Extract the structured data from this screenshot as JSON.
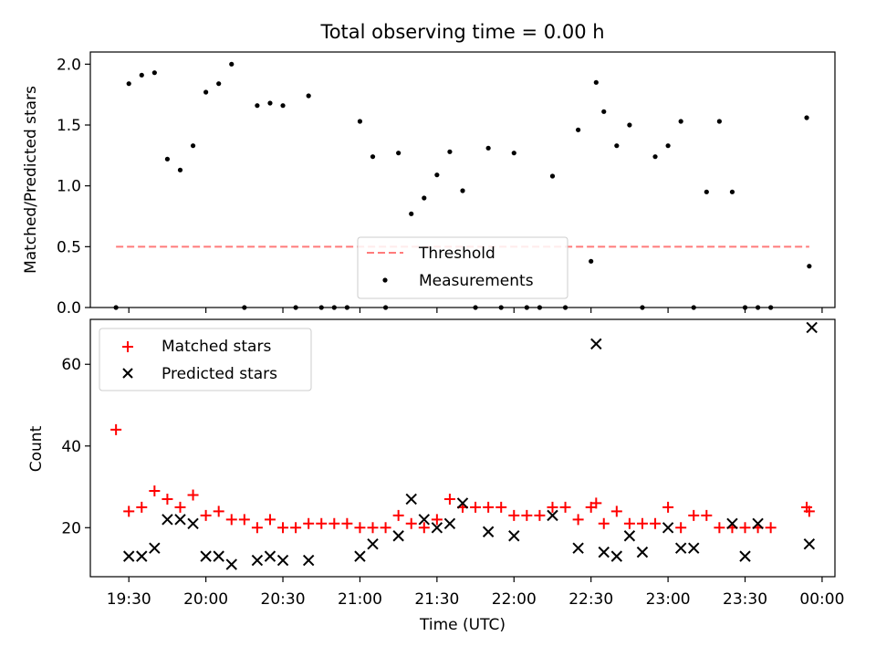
{
  "chart_data": [
    {
      "type": "scatter",
      "title": "Total observing time = 0.00 h",
      "xlabel": "",
      "ylabel": "Matched/Predicted stars",
      "xlim": [
        "19:15",
        "00:05"
      ],
      "ylim": [
        0,
        2.1
      ],
      "yticks": [
        0.0,
        0.5,
        1.0,
        1.5,
        2.0
      ],
      "ytick_labels": [
        "0.0",
        "0.5",
        "1.0",
        "1.5",
        "2.0"
      ],
      "threshold": {
        "name": "Threshold",
        "value": 0.5,
        "x_range": [
          "19:25",
          "23:55"
        ],
        "color": "#ff7b7b",
        "style": "dashed"
      },
      "series": [
        {
          "name": "Measurements",
          "color": "#000000",
          "marker": "dot",
          "x": [
            "19:25",
            "19:30",
            "19:35",
            "19:40",
            "19:45",
            "19:50",
            "19:55",
            "20:00",
            "20:05",
            "20:10",
            "20:15",
            "20:20",
            "20:25",
            "20:30",
            "20:35",
            "20:40",
            "20:45",
            "20:50",
            "20:55",
            "21:00",
            "21:05",
            "21:10",
            "21:15",
            "21:20",
            "21:25",
            "21:30",
            "21:35",
            "21:40",
            "21:45",
            "21:50",
            "21:55",
            "22:00",
            "22:05",
            "22:10",
            "22:15",
            "22:20",
            "22:25",
            "22:30",
            "22:32",
            "22:35",
            "22:40",
            "22:45",
            "22:50",
            "22:55",
            "23:00",
            "23:05",
            "23:10",
            "23:15",
            "23:20",
            "23:25",
            "23:30",
            "23:35",
            "23:40",
            "23:54",
            "23:55"
          ],
          "y": [
            0.0,
            1.84,
            1.91,
            1.93,
            1.22,
            1.13,
            1.33,
            1.77,
            1.84,
            2.0,
            0.0,
            1.66,
            1.68,
            1.66,
            0.0,
            1.74,
            0.0,
            0.0,
            0.0,
            1.53,
            1.24,
            0.0,
            1.27,
            0.77,
            0.9,
            1.09,
            1.28,
            0.96,
            0.0,
            1.31,
            0.0,
            1.27,
            0.0,
            0.0,
            1.08,
            0.0,
            1.46,
            0.38,
            1.85,
            1.61,
            1.33,
            1.5,
            0.0,
            1.24,
            1.33,
            1.53,
            0.0,
            0.95,
            1.53,
            0.95,
            0.0,
            0.0,
            0.0,
            1.56,
            0.34
          ]
        }
      ],
      "legend": {
        "position": "lower-center",
        "entries": [
          "Threshold",
          "Measurements"
        ]
      },
      "grid": false
    },
    {
      "type": "scatter",
      "title": "",
      "xlabel": "Time (UTC)",
      "ylabel": "Count",
      "xlim": [
        "19:15",
        "00:05"
      ],
      "ylim": [
        8,
        71
      ],
      "yticks": [
        20,
        40,
        60
      ],
      "ytick_labels": [
        "20",
        "40",
        "60"
      ],
      "xticks": [
        "19:30",
        "20:00",
        "20:30",
        "21:00",
        "21:30",
        "22:00",
        "22:30",
        "23:00",
        "23:30",
        "00:00"
      ],
      "series": [
        {
          "name": "Matched stars",
          "color": "#ff0000",
          "marker": "plus",
          "x": [
            "19:25",
            "19:30",
            "19:35",
            "19:40",
            "19:45",
            "19:50",
            "19:55",
            "20:00",
            "20:05",
            "20:10",
            "20:15",
            "20:20",
            "20:25",
            "20:30",
            "20:35",
            "20:40",
            "20:45",
            "20:50",
            "20:55",
            "21:00",
            "21:05",
            "21:10",
            "21:15",
            "21:20",
            "21:25",
            "21:30",
            "21:35",
            "21:40",
            "21:45",
            "21:50",
            "21:55",
            "22:00",
            "22:05",
            "22:10",
            "22:15",
            "22:20",
            "22:25",
            "22:30",
            "22:32",
            "22:35",
            "22:40",
            "22:45",
            "22:50",
            "22:55",
            "23:00",
            "23:05",
            "23:10",
            "23:15",
            "23:20",
            "23:25",
            "23:30",
            "23:35",
            "23:40",
            "23:54",
            "23:55"
          ],
          "y": [
            44,
            24,
            25,
            29,
            27,
            25,
            28,
            23,
            24,
            22,
            22,
            20,
            22,
            20,
            20,
            21,
            21,
            21,
            21,
            20,
            20,
            20,
            23,
            21,
            20,
            22,
            27,
            25,
            25,
            25,
            25,
            23,
            23,
            23,
            25,
            25,
            22,
            25,
            26,
            21,
            24,
            21,
            21,
            21,
            25,
            20,
            23,
            23,
            20,
            20,
            20,
            20,
            20,
            25,
            24
          ]
        },
        {
          "name": "Predicted stars",
          "color": "#000000",
          "marker": "x",
          "x": [
            "19:30",
            "19:35",
            "19:40",
            "19:45",
            "19:50",
            "19:55",
            "20:00",
            "20:05",
            "20:10",
            "20:20",
            "20:25",
            "20:30",
            "20:40",
            "21:00",
            "21:05",
            "21:15",
            "21:20",
            "21:25",
            "21:30",
            "21:35",
            "21:40",
            "21:50",
            "22:00",
            "22:15",
            "22:25",
            "22:32",
            "22:35",
            "22:40",
            "22:45",
            "22:50",
            "23:00",
            "23:05",
            "23:10",
            "23:25",
            "23:30",
            "23:35",
            "23:55",
            "23:56"
          ],
          "y": [
            13,
            13,
            15,
            22,
            22,
            21,
            13,
            13,
            11,
            12,
            13,
            12,
            12,
            13,
            16,
            18,
            27,
            22,
            20,
            21,
            26,
            19,
            18,
            23,
            15,
            65,
            14,
            13,
            18,
            14,
            20,
            15,
            15,
            21,
            13,
            21,
            16,
            69
          ]
        }
      ],
      "legend": {
        "position": "upper-left",
        "entries": [
          "Matched stars",
          "Predicted stars"
        ]
      },
      "grid": false
    }
  ]
}
